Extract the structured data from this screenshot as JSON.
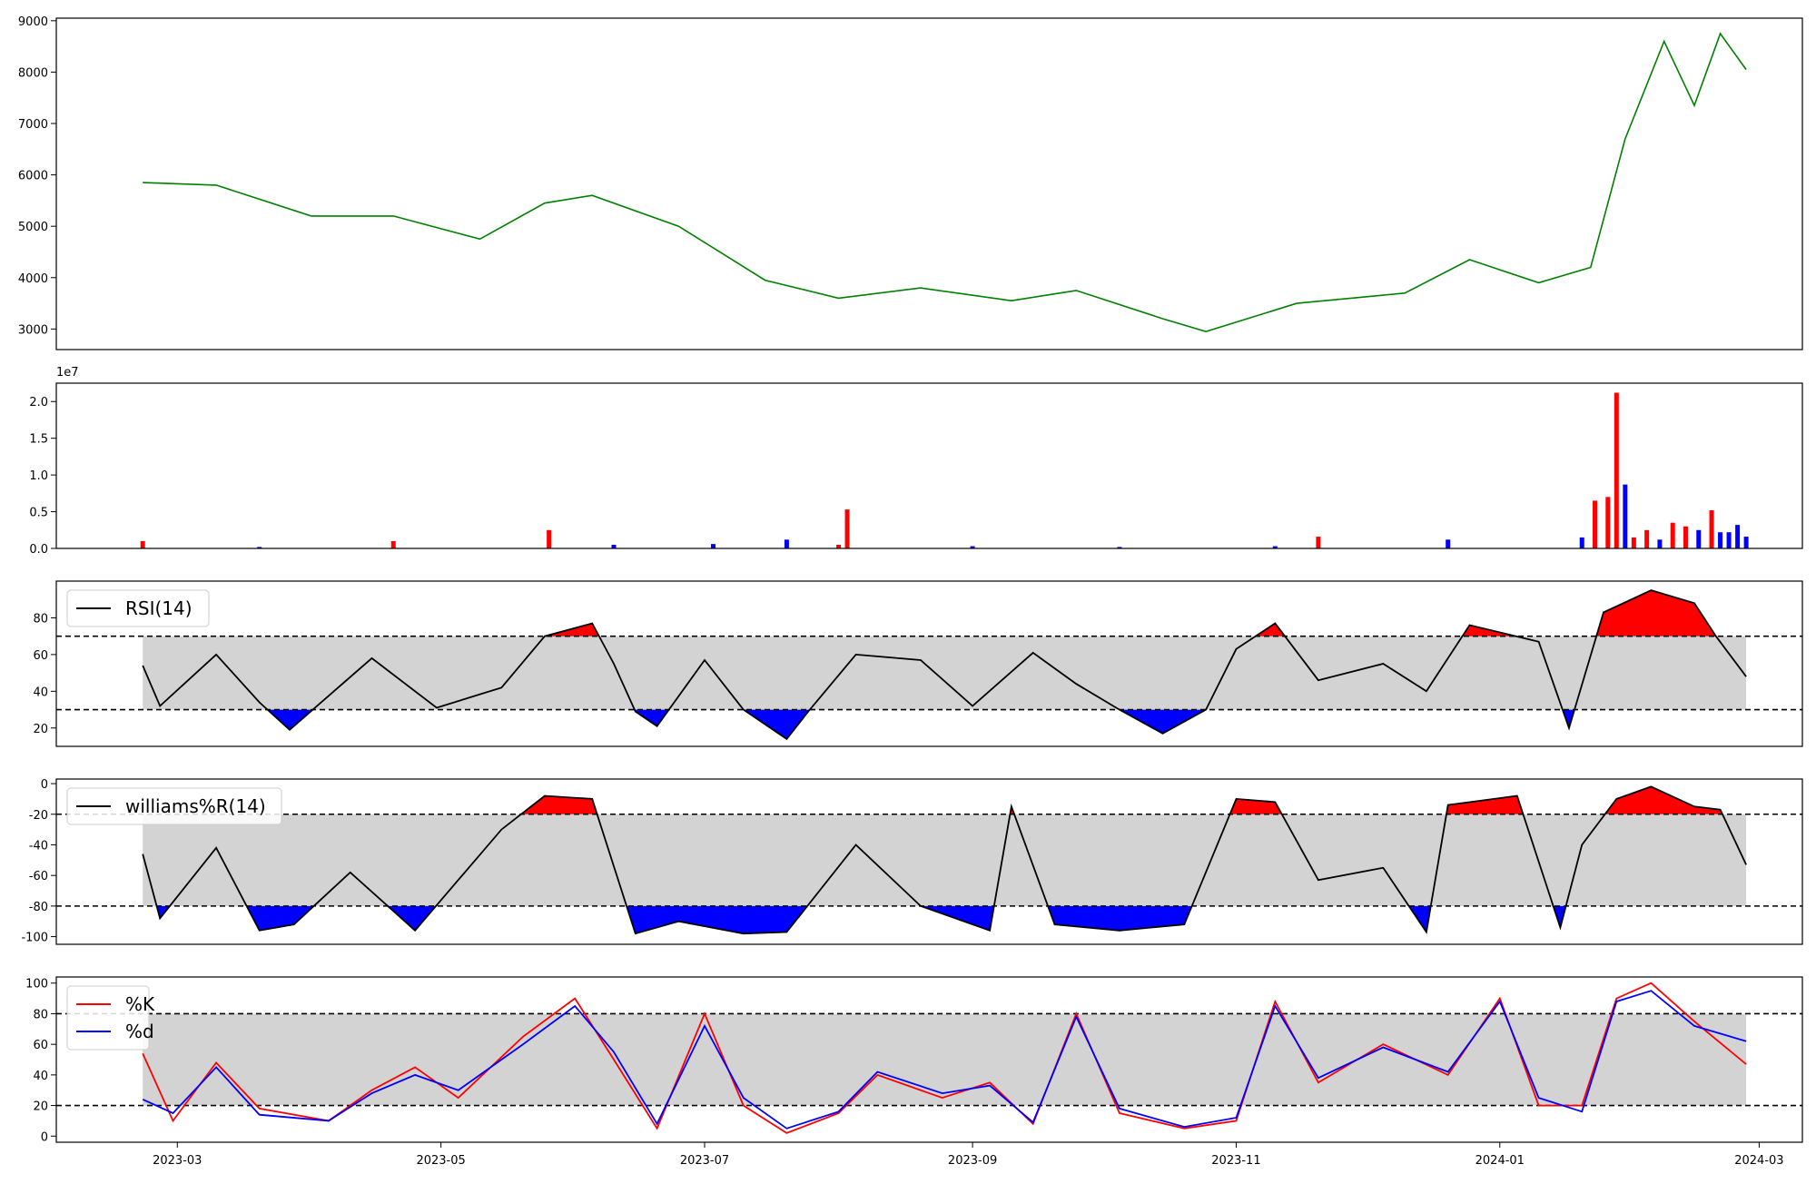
{
  "chart_data": [
    {
      "type": "line",
      "panel": "price",
      "x": [
        "2023-02-21",
        "2023-03-10",
        "2023-04-01",
        "2023-04-20",
        "2023-05-10",
        "2023-05-25",
        "2023-06-05",
        "2023-06-25",
        "2023-07-15",
        "2023-08-01",
        "2023-08-20",
        "2023-09-10",
        "2023-09-25",
        "2023-10-15",
        "2023-10-25",
        "2023-11-15",
        "2023-12-10",
        "2023-12-25",
        "2024-01-10",
        "2024-01-22",
        "2024-01-30",
        "2024-02-08",
        "2024-02-15",
        "2024-02-21",
        "2024-02-27"
      ],
      "series": [
        {
          "values": [
            5850,
            5800,
            5200,
            5200,
            4750,
            5450,
            5600,
            5000,
            3950,
            3600,
            3800,
            3550,
            3750,
            3200,
            2950,
            3500,
            3700,
            4350,
            3900,
            4200,
            6700,
            8600,
            7350,
            8750,
            8050
          ],
          "color": "#008000"
        }
      ],
      "xlim": [
        "2023-02-01",
        "2024-03-11"
      ],
      "ylim": [
        2600,
        9050
      ],
      "yticks": [
        "3000",
        "4000",
        "5000",
        "6000",
        "7000",
        "8000",
        "9000"
      ]
    },
    {
      "type": "bar",
      "panel": "volume",
      "offset_label": "1e7",
      "x": [
        "2023-02-21",
        "2023-03-20",
        "2023-04-20",
        "2023-05-26",
        "2023-06-10",
        "2023-07-03",
        "2023-07-20",
        "2023-08-01",
        "2023-08-03",
        "2023-09-01",
        "2023-10-05",
        "2023-11-10",
        "2023-11-20",
        "2023-12-20",
        "2024-01-20",
        "2024-01-23",
        "2024-01-26",
        "2024-01-28",
        "2024-01-30",
        "2024-02-01",
        "2024-02-04",
        "2024-02-07",
        "2024-02-10",
        "2024-02-13",
        "2024-02-16",
        "2024-02-19",
        "2024-02-21",
        "2024-02-23",
        "2024-02-25",
        "2024-02-27"
      ],
      "values": [
        0.1,
        0.02,
        0.1,
        0.25,
        0.05,
        0.06,
        0.12,
        0.05,
        0.53,
        0.03,
        0.02,
        0.03,
        0.16,
        0.12,
        0.15,
        0.65,
        0.7,
        2.12,
        0.87,
        0.15,
        0.25,
        0.12,
        0.35,
        0.3,
        0.25,
        0.52,
        0.22,
        0.22,
        0.32,
        0.16
      ],
      "colors": [
        "#ff0000",
        "#0000ff",
        "#ff0000",
        "#ff0000",
        "#0000ff",
        "#0000ff",
        "#0000ff",
        "#ff0000",
        "#ff0000",
        "#0000ff",
        "#0000ff",
        "#0000ff",
        "#ff0000",
        "#0000ff",
        "#0000ff",
        "#ff0000",
        "#ff0000",
        "#ff0000",
        "#0000ff",
        "#ff0000",
        "#ff0000",
        "#0000ff",
        "#ff0000",
        "#ff0000",
        "#0000ff",
        "#ff0000",
        "#0000ff",
        "#0000ff",
        "#0000ff",
        "#0000ff"
      ],
      "ylim": [
        0,
        2.25
      ],
      "yticks": [
        "0.0",
        "0.5",
        "1.0",
        "1.5",
        "2.0"
      ]
    },
    {
      "type": "line",
      "panel": "rsi",
      "legend": "RSI(14)",
      "x": [
        "2023-02-21",
        "2023-02-25",
        "2023-03-10",
        "2023-03-20",
        "2023-03-27",
        "2023-04-15",
        "2023-04-30",
        "2023-05-15",
        "2023-05-25",
        "2023-06-05",
        "2023-06-10",
        "2023-06-15",
        "2023-06-20",
        "2023-07-01",
        "2023-07-10",
        "2023-07-20",
        "2023-07-25",
        "2023-08-05",
        "2023-08-20",
        "2023-09-01",
        "2023-09-15",
        "2023-09-25",
        "2023-10-05",
        "2023-10-15",
        "2023-10-25",
        "2023-11-01",
        "2023-11-10",
        "2023-11-20",
        "2023-12-05",
        "2023-12-15",
        "2023-12-25",
        "2024-01-10",
        "2024-01-17",
        "2024-01-25",
        "2024-02-05",
        "2024-02-15",
        "2024-02-20",
        "2024-02-27"
      ],
      "series": [
        {
          "name": "RSI(14)",
          "values": [
            54,
            32,
            60,
            34,
            19,
            58,
            31,
            42,
            70,
            77,
            55,
            29,
            21,
            57,
            30,
            14,
            29,
            60,
            57,
            32,
            61,
            44,
            30,
            17,
            30,
            63,
            77,
            46,
            55,
            40,
            76,
            67,
            20,
            83,
            95,
            88,
            70,
            48
          ],
          "color": "#000000"
        }
      ],
      "thresholds": [
        30,
        70
      ],
      "ylim": [
        10,
        100
      ],
      "yticks": [
        "20",
        "40",
        "60",
        "80"
      ]
    },
    {
      "type": "line",
      "panel": "williams",
      "legend": "williams%R(14)",
      "x": [
        "2023-02-21",
        "2023-02-25",
        "2023-03-10",
        "2023-03-20",
        "2023-03-28",
        "2023-04-10",
        "2023-04-25",
        "2023-05-15",
        "2023-05-25",
        "2023-06-05",
        "2023-06-15",
        "2023-06-25",
        "2023-07-10",
        "2023-07-20",
        "2023-08-05",
        "2023-08-20",
        "2023-09-05",
        "2023-09-10",
        "2023-09-20",
        "2023-10-05",
        "2023-10-20",
        "2023-11-01",
        "2023-11-10",
        "2023-11-20",
        "2023-12-05",
        "2023-12-15",
        "2023-12-20",
        "2024-01-05",
        "2024-01-15",
        "2024-01-20",
        "2024-01-28",
        "2024-02-05",
        "2024-02-15",
        "2024-02-21",
        "2024-02-27"
      ],
      "series": [
        {
          "name": "williams%R(14)",
          "values": [
            -46,
            -88,
            -42,
            -96,
            -92,
            -58,
            -96,
            -30,
            -8,
            -10,
            -98,
            -90,
            -98,
            -97,
            -40,
            -80,
            -96,
            -15,
            -92,
            -96,
            -92,
            -10,
            -12,
            -63,
            -55,
            -97,
            -14,
            -8,
            -94,
            -40,
            -10,
            -2,
            -15,
            -17,
            -53
          ],
          "color": "#000000"
        }
      ],
      "thresholds": [
        -80,
        -20
      ],
      "ylim": [
        -105,
        3
      ],
      "yticks": [
        "-100",
        "-80",
        "-60",
        "-40",
        "-20",
        "0"
      ]
    },
    {
      "type": "line",
      "panel": "stochastic",
      "x_tick_labels": [
        "2023-03",
        "2023-05",
        "2023-07",
        "2023-09",
        "2023-11",
        "2024-01",
        "2024-03"
      ],
      "x": [
        "2023-02-21",
        "2023-02-28",
        "2023-03-10",
        "2023-03-20",
        "2023-04-05",
        "2023-04-15",
        "2023-04-25",
        "2023-05-05",
        "2023-05-20",
        "2023-06-01",
        "2023-06-10",
        "2023-06-20",
        "2023-07-01",
        "2023-07-10",
        "2023-07-20",
        "2023-08-01",
        "2023-08-10",
        "2023-08-25",
        "2023-09-05",
        "2023-09-15",
        "2023-09-25",
        "2023-10-05",
        "2023-10-20",
        "2023-11-01",
        "2023-11-10",
        "2023-11-20",
        "2023-12-05",
        "2023-12-20",
        "2024-01-01",
        "2024-01-10",
        "2024-01-20",
        "2024-01-28",
        "2024-02-05",
        "2024-02-15",
        "2024-02-27"
      ],
      "series": [
        {
          "name": "%K",
          "values": [
            54,
            10,
            48,
            18,
            10,
            30,
            45,
            25,
            65,
            90,
            50,
            5,
            80,
            20,
            2,
            15,
            40,
            25,
            35,
            8,
            80,
            15,
            5,
            10,
            88,
            35,
            60,
            40,
            90,
            20,
            20,
            90,
            100,
            75,
            47
          ],
          "color": "#ff0000"
        },
        {
          "name": "%d",
          "values": [
            24,
            15,
            45,
            14,
            10,
            28,
            40,
            30,
            60,
            85,
            55,
            8,
            72,
            25,
            5,
            16,
            42,
            28,
            33,
            9,
            78,
            18,
            6,
            12,
            85,
            38,
            58,
            42,
            88,
            25,
            16,
            88,
            95,
            72,
            62
          ],
          "color": "#0000ff"
        }
      ],
      "thresholds": [
        20,
        80
      ],
      "ylim": [
        -4,
        104
      ],
      "yticks": [
        "0",
        "20",
        "40",
        "60",
        "80",
        "100"
      ]
    }
  ]
}
